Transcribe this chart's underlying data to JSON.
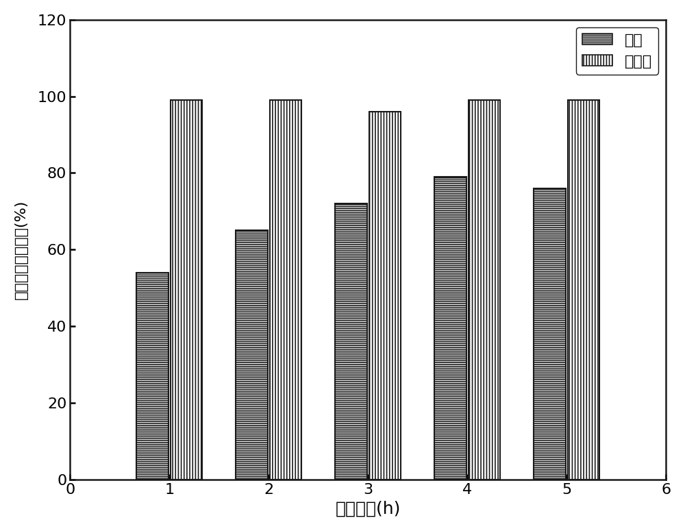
{
  "categories": [
    1,
    2,
    3,
    4,
    5
  ],
  "yield_values": [
    54,
    65,
    72,
    79,
    76
  ],
  "selectivity_values": [
    99,
    99,
    96,
    99,
    99
  ],
  "bar_width": 0.32,
  "xlabel": "反应时间(h)",
  "ylabel": "分离产率和选择性(%)",
  "xlim": [
    0,
    6
  ],
  "ylim": [
    0,
    120
  ],
  "xticks": [
    0,
    1,
    2,
    3,
    4,
    5,
    6
  ],
  "yticks": [
    0,
    20,
    40,
    60,
    80,
    100,
    120
  ],
  "legend_labels": [
    "产率",
    "选择性"
  ],
  "bar_facecolor": "white",
  "bar_edgecolor": "#1a1a1a",
  "xlabel_fontsize": 18,
  "ylabel_fontsize": 16,
  "tick_fontsize": 16,
  "legend_fontsize": 16,
  "axis_linewidth": 1.8,
  "background_color": "#ffffff"
}
